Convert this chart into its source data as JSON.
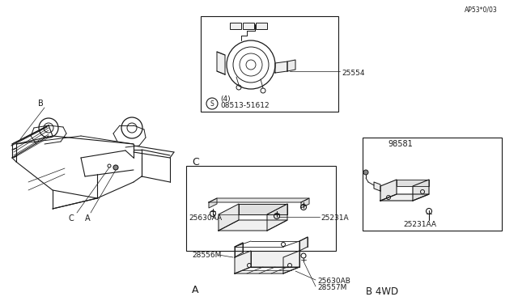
{
  "bg_color": "#ffffff",
  "line_color": "#1a1a1a",
  "label_A": "A",
  "label_B": "B",
  "label_C": "C",
  "label_B4WD": "B 4WD",
  "part_28557M": "28557M",
  "part_25630AB": "25630AB",
  "part_28556M": "28556M",
  "part_25231A": "25231A",
  "part_25630AA": "25630AA",
  "part_25231AA": "25231AA",
  "part_98581": "98581",
  "part_08513": "08513-51612",
  "part_08513_sub": "〈4）",
  "part_25554": "25554",
  "watermark": "AP53*0/03",
  "fs_label": 8,
  "fs_part": 6.5
}
